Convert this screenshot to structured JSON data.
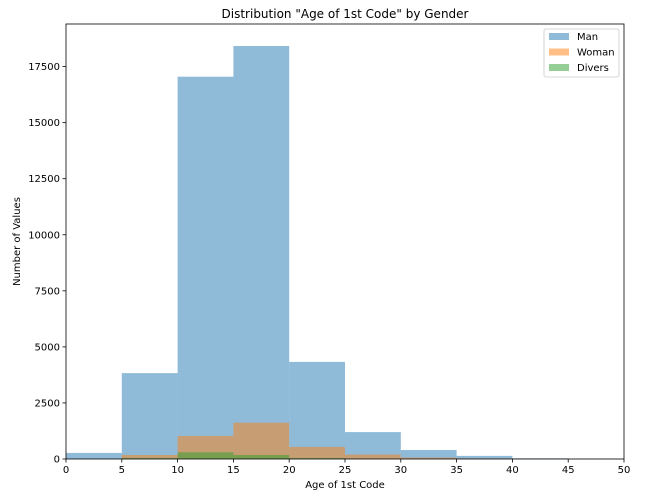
{
  "chart_data": {
    "type": "histogram",
    "title": "Distribution \"Age of 1st Code\" by Gender",
    "xlabel": "Age of 1st Code",
    "ylabel": "Number of Values",
    "xlim": [
      0,
      50
    ],
    "ylim": [
      0,
      19400
    ],
    "x_ticks": [
      "0",
      "5",
      "10",
      "15",
      "20",
      "25",
      "30",
      "35",
      "40",
      "45",
      "50"
    ],
    "y_ticks": [
      "0",
      "2500",
      "5000",
      "7500",
      "10000",
      "12500",
      "15000",
      "17500"
    ],
    "bin_edges": [
      0,
      5,
      10,
      15,
      20,
      25,
      30,
      35,
      40,
      45,
      50
    ],
    "grid": false,
    "legend_position": "top-right",
    "series": [
      {
        "name": "Man",
        "color": "#1f77b4",
        "alpha": 0.5,
        "bins": [
          {
            "x0": 0,
            "x1": 5,
            "value": 270
          },
          {
            "x0": 5,
            "x1": 10,
            "value": 3830
          },
          {
            "x0": 10,
            "x1": 15,
            "value": 17050
          },
          {
            "x0": 15,
            "x1": 20,
            "value": 18420
          },
          {
            "x0": 20,
            "x1": 25,
            "value": 4330
          },
          {
            "x0": 25,
            "x1": 30,
            "value": 1200
          },
          {
            "x0": 30,
            "x1": 35,
            "value": 400
          },
          {
            "x0": 35,
            "x1": 40,
            "value": 140
          },
          {
            "x0": 40,
            "x1": 45,
            "value": 30
          },
          {
            "x0": 45,
            "x1": 50,
            "value": 15
          }
        ]
      },
      {
        "name": "Woman",
        "color": "#ff7f0e",
        "alpha": 0.5,
        "bins": [
          {
            "x0": 5,
            "x1": 10,
            "value": 180
          },
          {
            "x0": 10,
            "x1": 15,
            "value": 1030
          },
          {
            "x0": 15,
            "x1": 20,
            "value": 1620
          },
          {
            "x0": 20,
            "x1": 25,
            "value": 540
          },
          {
            "x0": 25,
            "x1": 30,
            "value": 200
          },
          {
            "x0": 30,
            "x1": 35,
            "value": 60
          },
          {
            "x0": 35,
            "x1": 40,
            "value": 25
          },
          {
            "x0": 40,
            "x1": 45,
            "value": 10
          }
        ]
      },
      {
        "name": "Divers",
        "color": "#2ca02c",
        "alpha": 0.5,
        "bins": [
          {
            "x0": 5,
            "x1": 10,
            "value": 40
          },
          {
            "x0": 10,
            "x1": 15,
            "value": 300
          },
          {
            "x0": 15,
            "x1": 20,
            "value": 180
          },
          {
            "x0": 20,
            "x1": 25,
            "value": 40
          },
          {
            "x0": 25,
            "x1": 30,
            "value": 10
          }
        ]
      }
    ]
  }
}
